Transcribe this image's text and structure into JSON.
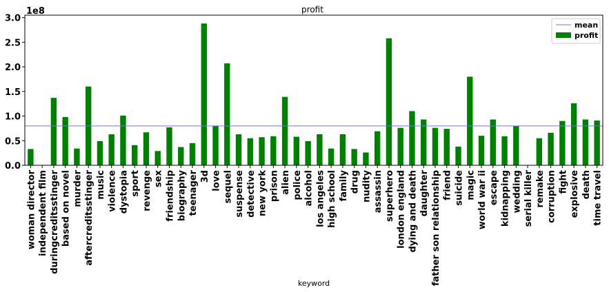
{
  "chart_data": {
    "type": "bar",
    "title": "profit",
    "xlabel": "keyword",
    "ylabel": "",
    "y_offset_label": "1e8",
    "y_scale": 100000000,
    "ylim": [
      0,
      3.05
    ],
    "yticks": [
      0.0,
      0.5,
      1.0,
      1.5,
      2.0,
      2.5,
      3.0
    ],
    "ytick_labels": [
      "0.0",
      "0.5",
      "1.0",
      "1.5",
      "2.0",
      "2.5",
      "3.0"
    ],
    "mean": 0.8,
    "legend_position": "top-right",
    "grid": false,
    "categories": [
      "woman director",
      "independent film",
      "duringcreditsstinger",
      "based on novel",
      "murder",
      "aftercreditsstinger",
      "music",
      "violence",
      "dystopia",
      "sport",
      "revenge",
      "sex",
      "friendship",
      "biography",
      "teenager",
      "3d",
      "love",
      "sequel",
      "suspense",
      "detective",
      "new york",
      "prison",
      "alien",
      "police",
      "alcohol",
      "los angeles",
      "high school",
      "family",
      "drug",
      "nudity",
      "assassin",
      "superhero",
      "london england",
      "dying and death",
      "daughter",
      "father son relationship",
      "friend",
      "suicide",
      "magic",
      "world war ii",
      "escape",
      "kidnapping",
      "wedding",
      "serial killer",
      "remake",
      "corruption",
      "fight",
      "explosive",
      "death",
      "time travel"
    ],
    "series": [
      {
        "name": "profit",
        "color": "#008000",
        "values": [
          0.33,
          0.0,
          1.37,
          0.98,
          0.34,
          1.6,
          0.49,
          0.63,
          1.01,
          0.41,
          0.67,
          0.29,
          0.77,
          0.37,
          0.45,
          2.88,
          0.8,
          2.07,
          0.63,
          0.55,
          0.57,
          0.59,
          1.39,
          0.58,
          0.49,
          0.63,
          0.34,
          0.63,
          0.33,
          0.26,
          0.69,
          2.58,
          0.76,
          1.1,
          0.93,
          0.76,
          0.74,
          0.38,
          1.8,
          0.6,
          0.93,
          0.59,
          0.8,
          0.0,
          0.55,
          0.66,
          0.9,
          1.26,
          0.93,
          0.91
        ]
      }
    ],
    "mean_line": {
      "name": "mean",
      "color": "#7777cc"
    }
  }
}
